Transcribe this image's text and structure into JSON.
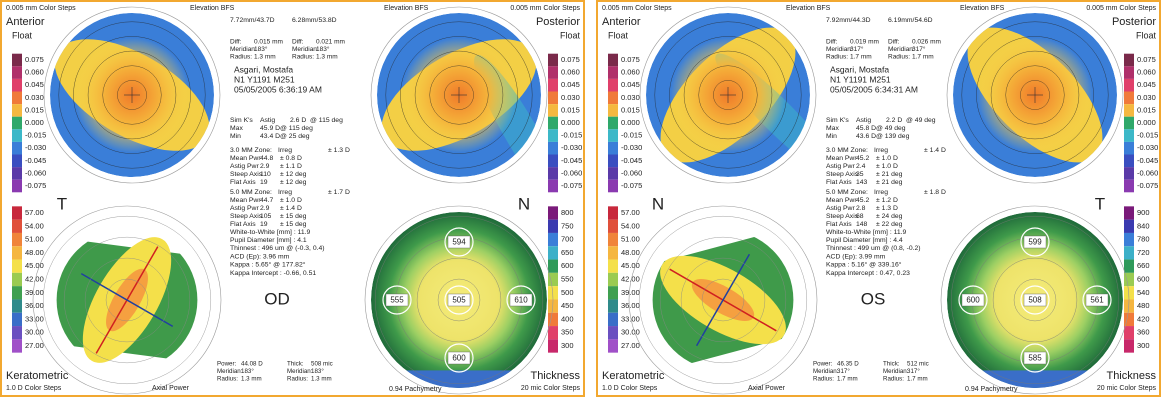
{
  "panels": [
    {
      "eye": "OD",
      "side_left": "T",
      "side_right": "N",
      "header": {
        "left_steps": "0.005 mm Color Steps",
        "left_title": "Anterior",
        "left_sub": "Float",
        "bfs_left": "Elevation BFS",
        "bfs_right": "Elevation BFS",
        "bfs_anterior": "7.72mm/43.7D",
        "bfs_posterior": "6.28mm/53.8D",
        "right_steps": "0.005 mm Color Steps",
        "right_title": "Posterior",
        "right_sub": "Float"
      },
      "diff_anterior": [
        [
          "Diff:",
          "0.015 mm"
        ],
        [
          "Meridian:",
          "183°"
        ],
        [
          "Radius:",
          "1.3 mm"
        ]
      ],
      "diff_posterior": [
        [
          "Diff:",
          "0.021 mm"
        ],
        [
          "Meridian:",
          "183°"
        ],
        [
          "Radius:",
          "1.3 mm"
        ]
      ],
      "patient": [
        "Asgari, Mostafa",
        "N1 Y1191 M251",
        "05/05/2005 6:36:19 AM"
      ],
      "sim_k": {
        "label": "Sim K's",
        "rows": [
          [
            "Astig",
            "2.6 D",
            "@ 115 deg"
          ],
          [
            "Max",
            "45.9 D",
            "@ 115 deg"
          ],
          [
            "Min",
            "43.4 D",
            "@ 25 deg"
          ]
        ]
      },
      "zone3": {
        "label": "3.0 MM Zone:",
        "rows": [
          [
            "Irreg",
            "± 1.3 D"
          ],
          [
            "Mean Pwr",
            "44.8",
            "± 0.8 D"
          ],
          [
            "Astig Pwr",
            "2.9",
            "± 1.1 D"
          ],
          [
            "Steep Axis",
            "110",
            "± 12 deg"
          ],
          [
            "Flat Axis",
            "19",
            "± 12 deg"
          ]
        ]
      },
      "zone5": {
        "label": "5.0 MM Zone:",
        "rows": [
          [
            "Irreg",
            "± 1.7 D"
          ],
          [
            "Mean Pwr",
            "44.7",
            "± 1.0 D"
          ],
          [
            "Astig Pwr",
            "2.9",
            "± 1.4 D"
          ],
          [
            "Steep Axis",
            "105",
            "± 15 deg"
          ],
          [
            "Flat Axis",
            "19",
            "± 15 deg"
          ]
        ]
      },
      "misc": [
        "White-to-White [mm] : 11.9",
        "Pupil Diameter [mm] : 4.1",
        "Thinnest : 496 um @ (-0.3, 0.4)",
        "ACD (Ep): 3.96 mm",
        "Kappa : 5.65° @ 177.82°",
        "Kappa Intercept : -0.66, 0.51"
      ],
      "scale_anterior": [
        "0.075",
        "0.060",
        "0.045",
        "0.030",
        "0.015",
        "0.000",
        "-0.015",
        "-0.030",
        "-0.045",
        "-0.060",
        "-0.075"
      ],
      "scale_posterior": [
        "0.075",
        "0.060",
        "0.045",
        "0.030",
        "0.015",
        "0.000",
        "-0.015",
        "-0.030",
        "-0.045",
        "-0.060",
        "-0.075"
      ],
      "scale_keratometric": [
        "57.00",
        "54.00",
        "51.00",
        "48.00",
        "45.00",
        "42.00",
        "39.00",
        "36.00",
        "33.00",
        "30.00",
        "27.00"
      ],
      "scale_thickness": [
        "800",
        "750",
        "700",
        "650",
        "600",
        "550",
        "500",
        "450",
        "400",
        "350",
        "300"
      ],
      "thickness_points": [
        "594",
        "555",
        "505",
        "610",
        "600"
      ],
      "footer": {
        "left_title": "Keratometric",
        "left_steps": "1.0 D Color Steps",
        "map_kind": "Axial Power",
        "power": [
          [
            "Power:",
            "44.08 D"
          ],
          [
            "Meridian:",
            "183°"
          ],
          [
            "Radius:",
            "1.3 mm"
          ]
        ],
        "thick": [
          [
            "Thick:",
            "508 mic"
          ],
          [
            "Meridian:",
            "183°"
          ],
          [
            "Radius:",
            "1.3 mm"
          ]
        ],
        "pachymetry": "0.94 Pachymetry",
        "right_title": "Thickness",
        "right_steps": "20 mic Color Steps"
      }
    },
    {
      "eye": "OS",
      "side_left": "N",
      "side_right": "T",
      "header": {
        "left_steps": "0.005 mm Color Steps",
        "left_title": "Anterior",
        "left_sub": "Float",
        "bfs_left": "Elevation BFS",
        "bfs_right": "Elevation BFS",
        "bfs_anterior": "7.92mm/44.3D",
        "bfs_posterior": "6.19mm/54.6D",
        "right_steps": "0.005 mm Color Steps",
        "right_title": "Posterior",
        "right_sub": "Float"
      },
      "diff_anterior": [
        [
          "Diff:",
          "0.019 mm"
        ],
        [
          "Meridian:",
          "317°"
        ],
        [
          "Radius:",
          "1.7 mm"
        ]
      ],
      "diff_posterior": [
        [
          "Diff:",
          "0.026 mm"
        ],
        [
          "Meridian:",
          "317°"
        ],
        [
          "Radius:",
          "1.7 mm"
        ]
      ],
      "patient": [
        "Asgari, Mostafa",
        "N1 Y1191 M251",
        "05/05/2005 6:34:31 AM"
      ],
      "sim_k": {
        "label": "Sim K's",
        "rows": [
          [
            "Astig",
            "2.2 D",
            "@ 49 deg"
          ],
          [
            "Max",
            "45.8 D",
            "@ 49 deg"
          ],
          [
            "Min",
            "43.6 D",
            "@ 139 deg"
          ]
        ]
      },
      "zone3": {
        "label": "3.0 MM Zone:",
        "rows": [
          [
            "Irreg",
            "± 1.4 D"
          ],
          [
            "Mean Pwr",
            "45.2",
            "± 1.0 D"
          ],
          [
            "Astig Pwr",
            "2.4",
            "± 1.0 D"
          ],
          [
            "Steep Axis",
            "35",
            "± 21 deg"
          ],
          [
            "Flat Axis",
            "143",
            "± 21 deg"
          ]
        ]
      },
      "zone5": {
        "label": "5.0 MM Zone:",
        "rows": [
          [
            "Irreg",
            "± 1.8 D"
          ],
          [
            "Mean Pwr",
            "45.2",
            "± 1.2 D"
          ],
          [
            "Astig Pwr",
            "2.8",
            "± 1.3 D"
          ],
          [
            "Steep Axis",
            "68",
            "± 24 deg"
          ],
          [
            "Flat Axis",
            "148",
            "± 22 deg"
          ]
        ]
      },
      "misc": [
        "White-to-White [mm] : 11.9",
        "Pupil Diameter [mm] : 4.4",
        "Thinnest : 499 um @ (0.8, -0.2)",
        "ACD (Ep): 3.99 mm",
        "Kappa : 5.16° @ 339.16°",
        "Kappa Intercept : 0.47, 0.23"
      ],
      "scale_anterior": [
        "0.075",
        "0.060",
        "0.045",
        "0.030",
        "0.015",
        "0.000",
        "-0.015",
        "-0.030",
        "-0.045",
        "-0.060",
        "-0.075"
      ],
      "scale_posterior": [
        "0.075",
        "0.060",
        "0.045",
        "0.030",
        "0.015",
        "0.000",
        "-0.015",
        "-0.030",
        "-0.045",
        "-0.060",
        "-0.075"
      ],
      "scale_keratometric": [
        "57.00",
        "54.00",
        "51.00",
        "48.00",
        "45.00",
        "42.00",
        "39.00",
        "36.00",
        "33.00",
        "30.00",
        "27.00"
      ],
      "scale_thickness": [
        "900",
        "840",
        "780",
        "720",
        "660",
        "600",
        "540",
        "480",
        "420",
        "360",
        "300"
      ],
      "thickness_points": [
        "599",
        "600",
        "508",
        "561",
        "585"
      ],
      "footer": {
        "left_title": "Keratometric",
        "left_steps": "1.0 D Color Steps",
        "map_kind": "Axial Power",
        "power": [
          [
            "Power:",
            "46.35 D"
          ],
          [
            "Meridian:",
            "317°"
          ],
          [
            "Radius:",
            "1.7 mm"
          ]
        ],
        "thick": [
          [
            "Thick:",
            "512 mic"
          ],
          [
            "Meridian:",
            "317°"
          ],
          [
            "Radius:",
            "1.7 mm"
          ]
        ],
        "pachymetry": "0.94 Pachymetry",
        "right_title": "Thickness",
        "right_steps": "20 mic Color Steps"
      }
    }
  ]
}
